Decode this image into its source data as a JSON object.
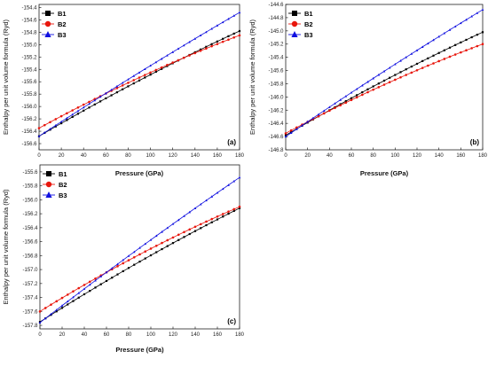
{
  "chart_data": [
    {
      "type": "line",
      "panel_label": "(a)",
      "xlabel": "Pressure (GPa)",
      "ylabel": "Enthalpy per unit volume formula (Ryd)",
      "xlim": [
        0,
        180
      ],
      "ylim": [
        -156.7,
        -154.35
      ],
      "xticks": [
        0,
        20,
        40,
        60,
        80,
        100,
        120,
        140,
        160,
        180
      ],
      "yticks": [
        -156.6,
        -156.4,
        -156.2,
        -156.0,
        -155.8,
        -155.6,
        -155.4,
        -155.2,
        -155.0,
        -154.8,
        -154.6,
        -154.4
      ],
      "ytick_labels": [
        "-156.6",
        "-156.4",
        "-156.2",
        "-156.0",
        "-155.8",
        "-155.6",
        "-155.4",
        "-155.2",
        "-155.0",
        "-154.8",
        "-154.6",
        "-154.4"
      ],
      "legend_position": "top-left",
      "series": [
        {
          "name": "B1",
          "color": "#000000",
          "marker": "square",
          "start": -156.48,
          "end": -154.78
        },
        {
          "name": "B2",
          "color": "#e8160c",
          "marker": "circle",
          "start": -156.35,
          "end": -154.85
        },
        {
          "name": "B3",
          "color": "#1010e0",
          "marker": "triangle",
          "start": -156.48,
          "end": -154.48
        }
      ]
    },
    {
      "type": "line",
      "panel_label": "(b)",
      "xlabel": "Pressure (GPa)",
      "ylabel": "Enthalpy per unit volume formula (Ryd)",
      "xlim": [
        0,
        180
      ],
      "ylim": [
        -146.8,
        -144.6
      ],
      "xticks": [
        0,
        20,
        40,
        60,
        80,
        100,
        120,
        140,
        160,
        180
      ],
      "yticks": [
        -146.8,
        -146.6,
        -146.4,
        -146.2,
        -146.0,
        -145.8,
        -145.6,
        -145.4,
        -145.2,
        -145.0,
        -144.8,
        -144.6
      ],
      "ytick_labels": [
        "-146.8",
        "-146.6",
        "-146.4",
        "-146.2",
        "-146.0",
        "-145.8",
        "-145.6",
        "-145.4",
        "-145.2",
        "-145.0",
        "-144.8",
        "-144.6"
      ],
      "legend_position": "top-left",
      "series": [
        {
          "name": "B1",
          "color": "#000000",
          "marker": "square",
          "start": -146.58,
          "end": -145.02
        },
        {
          "name": "B2",
          "color": "#e8160c",
          "marker": "circle",
          "start": -146.55,
          "end": -145.2
        },
        {
          "name": "B3",
          "color": "#1010e0",
          "marker": "triangle",
          "start": -146.6,
          "end": -144.68
        }
      ]
    },
    {
      "type": "line",
      "panel_label": "(c)",
      "xlabel": "Pressure (GPa)",
      "ylabel": "Enthalpy per unit volume formula (Ryd)",
      "xlim": [
        0,
        180
      ],
      "ylim": [
        -157.85,
        -155.5
      ],
      "xticks": [
        0,
        20,
        40,
        60,
        80,
        100,
        120,
        140,
        160,
        180
      ],
      "yticks": [
        -157.8,
        -157.6,
        -157.4,
        -157.2,
        -157.0,
        -156.8,
        -156.6,
        -156.4,
        -156.2,
        -156.0,
        -155.8,
        -155.6
      ],
      "ytick_labels": [
        "-157.8",
        "-157.6",
        "-157.4",
        "-157.2",
        "-157.0",
        "-156.8",
        "-156.6",
        "-156.4",
        "-156.2",
        "-156.0",
        "-155.8",
        "-155.6"
      ],
      "legend_position": "top-left",
      "series": [
        {
          "name": "B1",
          "color": "#000000",
          "marker": "square",
          "start": -157.75,
          "end": -156.12
        },
        {
          "name": "B2",
          "color": "#e8160c",
          "marker": "circle",
          "start": -157.6,
          "end": -156.1
        },
        {
          "name": "B3",
          "color": "#1010e0",
          "marker": "triangle",
          "start": -157.76,
          "end": -155.68
        }
      ]
    }
  ]
}
